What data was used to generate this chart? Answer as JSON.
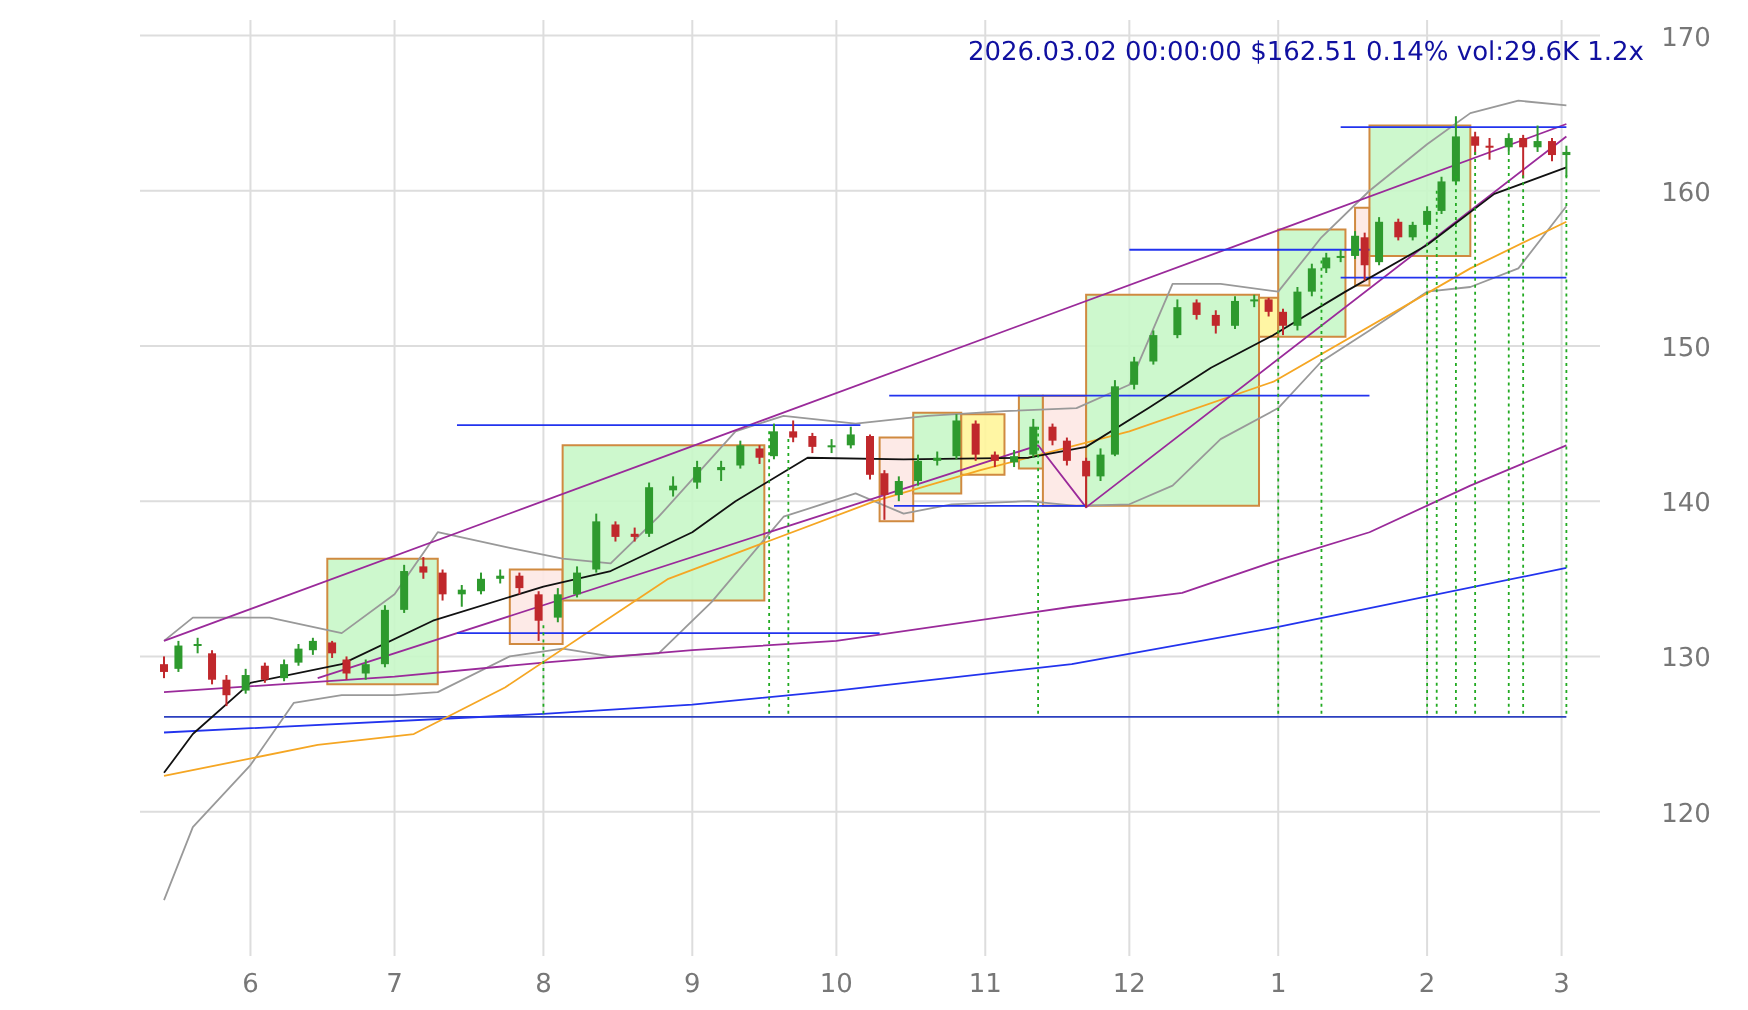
{
  "chart_data": {
    "type": "candlestick",
    "title": "2026.03.02 00:00:00 $162.51 0.14% vol:29.6K 1.2x",
    "xlim": [
      "2025-05-09",
      "2026-03-09"
    ],
    "xticks": [
      {
        "value": "2025-06-01",
        "label": "6"
      },
      {
        "value": "2025-07-01",
        "label": "7"
      },
      {
        "value": "2025-08-01",
        "label": "8"
      },
      {
        "value": "2025-09-01",
        "label": "9"
      },
      {
        "value": "2025-10-01",
        "label": "10"
      },
      {
        "value": "2025-11-01",
        "label": "11"
      },
      {
        "value": "2025-12-01",
        "label": "12"
      },
      {
        "value": "2026-01-01",
        "label": "1"
      },
      {
        "value": "2026-02-01",
        "label": "2"
      },
      {
        "value": "2026-03-01",
        "label": "3"
      }
    ],
    "ylim": [
      110.7,
      171
    ],
    "yticks": [
      120,
      130,
      140,
      150,
      160,
      170
    ],
    "grid": true,
    "series": [
      {
        "type": "area",
        "color": "#c8f7c8",
        "x": [
          "2025-06-17",
          "2025-06-17",
          "2025-07-10",
          "2025-07-10"
        ],
        "values": [
          128.2,
          136.3,
          136.3,
          128.2
        ]
      },
      {
        "type": "area",
        "color": "#fde8e4",
        "x": [
          "2025-07-25",
          "2025-07-25",
          "2025-08-05",
          "2025-08-05"
        ],
        "values": [
          130.8,
          135.6,
          135.6,
          130.8
        ]
      },
      {
        "type": "area",
        "color": "#c8f7c8",
        "x": [
          "2025-08-05",
          "2025-08-05",
          "2025-09-16",
          "2025-09-16"
        ],
        "values": [
          133.6,
          143.6,
          143.6,
          133.6
        ]
      },
      {
        "type": "area",
        "color": "#fde8e4",
        "x": [
          "2025-10-10",
          "2025-10-10",
          "2025-10-17",
          "2025-10-17"
        ],
        "values": [
          138.7,
          144.1,
          144.1,
          138.7
        ]
      },
      {
        "type": "area",
        "color": "#c8f7c8",
        "x": [
          "2025-10-17",
          "2025-10-17",
          "2025-10-27",
          "2025-10-27"
        ],
        "values": [
          140.5,
          145.7,
          145.7,
          140.5
        ]
      },
      {
        "type": "area",
        "color": "#fff59a",
        "x": [
          "2025-10-27",
          "2025-10-27",
          "2025-11-05",
          "2025-11-05"
        ],
        "values": [
          141.7,
          145.6,
          145.6,
          141.7
        ]
      },
      {
        "type": "area",
        "color": "#c8f7c8",
        "x": [
          "2025-11-08",
          "2025-11-08",
          "2025-11-13",
          "2025-11-13"
        ],
        "values": [
          142.1,
          146.8,
          146.8,
          142.1
        ]
      },
      {
        "type": "area",
        "color": "#fde8e4",
        "x": [
          "2025-11-13",
          "2025-11-13",
          "2025-11-22",
          "2025-11-22"
        ],
        "values": [
          139.7,
          146.8,
          146.8,
          139.7
        ]
      },
      {
        "type": "area",
        "color": "#c8f7c8",
        "x": [
          "2025-11-22",
          "2025-11-22",
          "2025-12-28",
          "2025-12-28"
        ],
        "values": [
          139.7,
          153.3,
          153.3,
          139.7
        ]
      },
      {
        "type": "area",
        "color": "#fff59a",
        "x": [
          "2025-12-28",
          "2025-12-28",
          "2026-01-01",
          "2026-01-01"
        ],
        "values": [
          150.6,
          153.1,
          153.1,
          150.6
        ]
      },
      {
        "type": "area",
        "color": "#c8f7c8",
        "x": [
          "2026-01-01",
          "2026-01-01",
          "2026-01-15",
          "2026-01-15"
        ],
        "values": [
          150.6,
          157.5,
          157.5,
          150.6
        ]
      },
      {
        "type": "area",
        "color": "#fde8e4",
        "x": [
          "2026-01-17",
          "2026-01-17",
          "2026-01-20",
          "2026-01-20"
        ],
        "values": [
          153.9,
          158.9,
          158.9,
          153.9
        ]
      },
      {
        "type": "area",
        "color": "#c8f7c8",
        "x": [
          "2026-01-20",
          "2026-02-10",
          "2026-02-10",
          "2026-01-20"
        ],
        "values": [
          155.8,
          155.8,
          164.2,
          164.2
        ]
      },
      {
        "type": "line",
        "color": "#2b3fbf",
        "x": [
          "2025-05-14",
          "2026-03-02"
        ],
        "values": [
          126.1,
          126.1
        ]
      },
      {
        "type": "line",
        "color": "#22aa22",
        "line_style": "dotted",
        "x": [
          "2025-08-01",
          "2025-08-01"
        ],
        "values": [
          126.3,
          132
        ]
      },
      {
        "type": "line",
        "color": "#22aa22",
        "line_style": "dotted",
        "x": [
          "2025-09-17",
          "2025-09-17"
        ],
        "values": [
          126.3,
          144.5
        ]
      },
      {
        "type": "line",
        "color": "#22aa22",
        "line_style": "dotted",
        "x": [
          "2025-09-21",
          "2025-09-21"
        ],
        "values": [
          126.3,
          144
        ]
      },
      {
        "type": "line",
        "color": "#22aa22",
        "line_style": "dotted",
        "x": [
          "2025-11-12",
          "2025-11-12"
        ],
        "values": [
          126.3,
          144.8
        ]
      },
      {
        "type": "line",
        "color": "#22aa22",
        "line_style": "dotted",
        "x": [
          "2026-01-01",
          "2026-01-01"
        ],
        "values": [
          126.3,
          151
        ]
      },
      {
        "type": "line",
        "color": "#22aa22",
        "line_style": "dotted",
        "x": [
          "2026-01-10",
          "2026-01-10"
        ],
        "values": [
          126.3,
          155.5
        ]
      },
      {
        "type": "line",
        "color": "#22aa22",
        "line_style": "dotted",
        "x": [
          "2026-02-01",
          "2026-02-01"
        ],
        "values": [
          126.3,
          158
        ]
      },
      {
        "type": "line",
        "color": "#22aa22",
        "line_style": "dotted",
        "x": [
          "2026-02-03",
          "2026-02-03"
        ],
        "values": [
          126.3,
          160
        ]
      },
      {
        "type": "line",
        "color": "#22aa22",
        "line_style": "dotted",
        "x": [
          "2026-02-07",
          "2026-02-07"
        ],
        "values": [
          126.3,
          161
        ]
      },
      {
        "type": "line",
        "color": "#22aa22",
        "line_style": "dotted",
        "x": [
          "2026-02-11",
          "2026-02-11"
        ],
        "values": [
          126.3,
          162.5
        ]
      },
      {
        "type": "line",
        "color": "#22aa22",
        "line_style": "dotted",
        "x": [
          "2026-02-18",
          "2026-02-18"
        ],
        "values": [
          126.3,
          162.5
        ]
      },
      {
        "type": "line",
        "color": "#22aa22",
        "line_style": "dotted",
        "x": [
          "2026-02-21",
          "2026-02-21"
        ],
        "values": [
          126.3,
          161
        ]
      },
      {
        "type": "line",
        "color": "#22aa22",
        "line_style": "dotted",
        "x": [
          "2026-03-02",
          "2026-03-02"
        ],
        "values": [
          126.3,
          161
        ]
      },
      {
        "type": "line",
        "color": "#999999",
        "x": [
          "2025-05-14",
          "2025-05-20",
          "2025-06-05",
          "2025-06-20",
          "2025-07-01",
          "2025-07-10",
          "2025-07-25",
          "2025-08-05",
          "2025-08-15",
          "2025-08-25",
          "2025-09-10",
          "2025-09-20",
          "2025-10-05",
          "2025-10-20",
          "2025-11-05",
          "2025-11-20",
          "2025-12-01",
          "2025-12-10",
          "2025-12-20",
          "2026-01-01",
          "2026-01-10",
          "2026-01-20",
          "2026-02-01",
          "2026-02-10",
          "2026-02-20",
          "2026-03-02"
        ],
        "values": [
          131,
          132.5,
          132.5,
          131.5,
          134,
          138,
          137,
          136.3,
          136,
          139,
          144.5,
          145.5,
          145,
          145.5,
          145.8,
          146,
          147.5,
          154,
          154,
          153.5,
          157,
          160,
          163,
          165,
          165.8,
          165.5
        ]
      },
      {
        "type": "line",
        "color": "#999999",
        "x": [
          "2025-05-14",
          "2025-05-20",
          "2025-06-01",
          "2025-06-10",
          "2025-06-20",
          "2025-07-01",
          "2025-07-10",
          "2025-07-25",
          "2025-08-05",
          "2025-08-15",
          "2025-08-25",
          "2025-09-05",
          "2025-09-20",
          "2025-10-05",
          "2025-10-15",
          "2025-10-25",
          "2025-11-10",
          "2025-11-20",
          "2025-12-01",
          "2025-12-10",
          "2025-12-20",
          "2026-01-01",
          "2026-01-10",
          "2026-01-20",
          "2026-02-01",
          "2026-02-10",
          "2026-02-20",
          "2026-03-02"
        ],
        "values": [
          114.3,
          119,
          123,
          127,
          127.5,
          127.5,
          127.7,
          130,
          130.5,
          130,
          130.2,
          133.5,
          139,
          140.5,
          139.2,
          139.8,
          140,
          139.7,
          139.8,
          141,
          144,
          146,
          149,
          151,
          153.5,
          153.8,
          155,
          159
        ]
      },
      {
        "type": "line",
        "color": "#9a2a9a",
        "x": [
          "2025-05-14",
          "2025-07-01",
          "2025-08-01",
          "2025-09-01",
          "2025-10-01",
          "2025-11-19",
          "2025-12-12",
          "2026-01-01",
          "2026-01-20",
          "2026-02-10",
          "2026-03-02"
        ],
        "values": [
          127.7,
          128.7,
          129.6,
          130.4,
          131,
          133.2,
          134.1,
          136.2,
          138,
          141,
          143.6
        ]
      },
      {
        "type": "line",
        "color": "#2233ee",
        "x": [
          "2025-05-14",
          "2025-08-01",
          "2025-09-01",
          "2025-10-01",
          "2025-11-19",
          "2026-01-01",
          "2026-03-02"
        ],
        "values": [
          125.1,
          126.3,
          126.9,
          127.8,
          129.5,
          131.9,
          135.7
        ]
      },
      {
        "type": "line",
        "color": "#f5a623",
        "x": [
          "2025-05-14",
          "2025-06-15",
          "2025-07-05",
          "2025-07-24",
          "2025-08-27",
          "2025-10-09",
          "2025-10-31",
          "2025-12-01",
          "2025-12-31",
          "2026-02-10",
          "2026-03-02"
        ],
        "values": [
          122.3,
          124.3,
          125,
          128,
          135,
          140,
          142,
          144.5,
          147.7,
          155,
          158
        ]
      },
      {
        "type": "line",
        "color": "#9a2a9a",
        "x": [
          "2025-05-14",
          "2026-03-02"
        ],
        "values": [
          131,
          164.3
        ]
      },
      {
        "type": "line",
        "color": "#9a2a9a",
        "x": [
          "2025-06-15",
          "2025-11-12",
          "2025-11-22",
          "2026-03-02"
        ],
        "values": [
          128.6,
          143.6,
          139.6,
          163.5
        ]
      },
      {
        "type": "line",
        "color": "#2233ee",
        "x": [
          "2025-07-14",
          "2025-10-06"
        ],
        "values": [
          144.9,
          144.9
        ]
      },
      {
        "type": "line",
        "color": "#2233ee",
        "x": [
          "2025-07-14",
          "2025-10-10"
        ],
        "values": [
          131.5,
          131.5
        ]
      },
      {
        "type": "line",
        "color": "#2233ee",
        "x": [
          "2025-10-12",
          "2026-01-20"
        ],
        "values": [
          146.8,
          146.8
        ]
      },
      {
        "type": "line",
        "color": "#2233ee",
        "x": [
          "2025-10-13",
          "2025-11-22"
        ],
        "values": [
          139.7,
          139.7
        ]
      },
      {
        "type": "line",
        "color": "#2233ee",
        "x": [
          "2025-12-01",
          "2026-01-20"
        ],
        "values": [
          156.2,
          156.2
        ]
      },
      {
        "type": "line",
        "color": "#2233ee",
        "x": [
          "2026-01-14",
          "2026-03-02"
        ],
        "values": [
          154.4,
          154.4
        ]
      },
      {
        "type": "line",
        "color": "#2233ee",
        "x": [
          "2026-01-14",
          "2026-03-02"
        ],
        "values": [
          164.1,
          164.1
        ]
      },
      {
        "type": "line",
        "color": "#111111",
        "x": [
          "2025-05-14",
          "2025-05-20",
          "2025-06-01",
          "2025-06-20",
          "2025-07-09",
          "2025-08-01",
          "2025-08-15",
          "2025-09-01",
          "2025-09-10",
          "2025-09-25",
          "2025-10-15",
          "2025-11-10",
          "2025-11-22",
          "2025-12-05",
          "2025-12-18",
          "2025-12-31",
          "2026-01-15",
          "2026-02-01",
          "2026-02-15",
          "2026-03-02"
        ],
        "values": [
          122.5,
          125,
          128.3,
          129.5,
          132.3,
          134.5,
          135.5,
          138,
          140,
          142.8,
          142.7,
          142.8,
          143.5,
          146,
          148.6,
          150.7,
          153.5,
          156.5,
          159.8,
          161.5
        ]
      },
      {
        "color": "#2e9a2e",
        "x": [
          "2025-05-17",
          "2025-05-21",
          "2025-05-31",
          "2025-06-08",
          "2025-06-11",
          "2025-06-14",
          "2025-06-25",
          "2025-06-29",
          "2025-07-03",
          "2025-07-15",
          "2025-07-19",
          "2025-07-23",
          "2025-08-04",
          "2025-08-08",
          "2025-08-12",
          "2025-08-23",
          "2025-08-28",
          "2025-09-02",
          "2025-09-07",
          "2025-09-11",
          "2025-09-18",
          "2025-09-30",
          "2025-10-04",
          "2025-10-14",
          "2025-10-18",
          "2025-10-22",
          "2025-10-26",
          "2025-11-07",
          "2025-11-11",
          "2025-11-25",
          "2025-11-28",
          "2025-12-02",
          "2025-12-06",
          "2025-12-11",
          "2025-12-23",
          "2025-12-27",
          "2026-01-05",
          "2026-01-08",
          "2026-01-11",
          "2026-01-14",
          "2026-01-17",
          "2026-01-22",
          "2026-01-29",
          "2026-02-01",
          "2026-02-04",
          "2026-02-07",
          "2026-02-18",
          "2026-02-24",
          "2026-03-02"
        ],
        "ohlc": [
          [
            129.2,
            131,
            129,
            130.7
          ],
          [
            130.7,
            131.2,
            130.2,
            130.8
          ],
          [
            127.8,
            129.2,
            127.6,
            128.8
          ],
          [
            128.6,
            129.8,
            128.4,
            129.5
          ],
          [
            129.6,
            130.8,
            129.4,
            130.5
          ],
          [
            130.4,
            131.2,
            130.1,
            131
          ],
          [
            128.9,
            129.8,
            128.5,
            129.5
          ],
          [
            129.5,
            133.3,
            129.3,
            133
          ],
          [
            133,
            135.9,
            132.8,
            135.5
          ],
          [
            134,
            134.6,
            133.2,
            134.3
          ],
          [
            134.2,
            135.4,
            134,
            135
          ],
          [
            135,
            135.6,
            134.7,
            135.2
          ],
          [
            132.5,
            134.4,
            132.2,
            134
          ],
          [
            134,
            135.8,
            133.8,
            135.4
          ],
          [
            135.6,
            139.2,
            135.4,
            138.7
          ],
          [
            137.9,
            141.2,
            137.7,
            140.9
          ],
          [
            140.7,
            141.6,
            140.3,
            141
          ],
          [
            141.2,
            142.6,
            140.8,
            142.2
          ],
          [
            142,
            142.6,
            141.3,
            142.2
          ],
          [
            142.3,
            143.9,
            142.1,
            143.6
          ],
          [
            142.9,
            145,
            142.7,
            144.5
          ],
          [
            143.5,
            144,
            143.1,
            143.6
          ],
          [
            143.6,
            144.8,
            143.4,
            144.3
          ],
          [
            140.4,
            141.6,
            140,
            141.3
          ],
          [
            141.3,
            143,
            141,
            142.6
          ],
          [
            142.6,
            143.2,
            142.3,
            142.8
          ],
          [
            142.9,
            145.6,
            142.7,
            145.2
          ],
          [
            142.5,
            143.3,
            142.2,
            142.9
          ],
          [
            143,
            145.3,
            142.8,
            144.8
          ],
          [
            141.6,
            143.4,
            141.3,
            143
          ],
          [
            143,
            147.8,
            142.9,
            147.4
          ],
          [
            147.5,
            149.3,
            147.2,
            149
          ],
          [
            149,
            151,
            148.8,
            150.7
          ],
          [
            150.7,
            153,
            150.5,
            152.5
          ],
          [
            151.3,
            153.2,
            151.1,
            152.9
          ],
          [
            152.9,
            153.3,
            152.5,
            153
          ],
          [
            151.3,
            153.8,
            151,
            153.5
          ],
          [
            153.5,
            155.3,
            153.2,
            155
          ],
          [
            155,
            156,
            154.7,
            155.7
          ],
          [
            155.7,
            156.2,
            155.4,
            155.8
          ],
          [
            155.8,
            157.4,
            155.6,
            157.1
          ],
          [
            155.4,
            158.3,
            155.2,
            158
          ],
          [
            157,
            158,
            156.8,
            157.8
          ],
          [
            157.8,
            159,
            157.5,
            158.7
          ],
          [
            158.7,
            160.9,
            158.5,
            160.6
          ],
          [
            160.6,
            164.8,
            160.4,
            163.5
          ],
          [
            162.8,
            163.7,
            162.5,
            163.4
          ],
          [
            162.8,
            164.2,
            162.5,
            163.2
          ],
          [
            162.3,
            162.9,
            160.9,
            162.5
          ]
        ]
      },
      {
        "color": "#c0282c",
        "x": [
          "2025-05-14",
          "2025-05-24",
          "2025-05-27",
          "2025-06-04",
          "2025-06-18",
          "2025-06-21",
          "2025-07-07",
          "2025-07-11",
          "2025-07-27",
          "2025-07-31",
          "2025-08-16",
          "2025-08-20",
          "2025-09-15",
          "2025-09-22",
          "2025-09-26",
          "2025-10-08",
          "2025-10-11",
          "2025-10-30",
          "2025-11-03",
          "2025-11-15",
          "2025-11-18",
          "2025-11-22",
          "2025-12-15",
          "2025-12-19",
          "2025-12-30",
          "2026-01-02",
          "2026-01-19",
          "2026-01-26",
          "2026-02-11",
          "2026-02-14",
          "2026-02-21",
          "2026-02-27"
        ],
        "ohlc": [
          [
            129.5,
            130,
            128.6,
            129
          ],
          [
            130.2,
            130.4,
            128.2,
            128.5
          ],
          [
            128.5,
            128.8,
            126.8,
            127.5
          ],
          [
            129.4,
            129.6,
            128.3,
            128.5
          ],
          [
            130.9,
            131,
            129.9,
            130.2
          ],
          [
            129.8,
            130,
            128.5,
            128.9
          ],
          [
            135.8,
            136.4,
            135,
            135.4
          ],
          [
            135.4,
            135.6,
            133.6,
            134
          ],
          [
            135.2,
            135.4,
            134,
            134.4
          ],
          [
            134,
            134.2,
            131,
            132.3
          ],
          [
            138.5,
            138.7,
            137.4,
            137.7
          ],
          [
            137.9,
            138.3,
            137.4,
            137.7
          ],
          [
            143.4,
            143.6,
            142.4,
            142.8
          ],
          [
            144.5,
            145.2,
            143.8,
            144.1
          ],
          [
            144.2,
            144.4,
            143.1,
            143.5
          ],
          [
            144.2,
            144.3,
            141.4,
            141.7
          ],
          [
            141.8,
            142,
            138.8,
            140.4
          ],
          [
            145,
            145.2,
            142.6,
            143
          ],
          [
            143,
            143.2,
            142.2,
            142.6
          ],
          [
            144.8,
            145,
            143.6,
            143.9
          ],
          [
            143.9,
            144.1,
            142.3,
            142.6
          ],
          [
            142.6,
            142.8,
            139.6,
            141.6
          ],
          [
            152.8,
            153,
            151.7,
            152
          ],
          [
            152,
            152.3,
            150.8,
            151.3
          ],
          [
            153,
            153.1,
            151.9,
            152.2
          ],
          [
            152.2,
            152.4,
            150.7,
            151.3
          ],
          [
            157,
            157.3,
            154.2,
            155.2
          ],
          [
            158,
            158.2,
            156.8,
            157
          ],
          [
            163.5,
            163.8,
            162.3,
            162.9
          ],
          [
            162.9,
            163.4,
            162,
            162.8
          ],
          [
            163.4,
            163.6,
            160.8,
            162.8
          ],
          [
            163.2,
            163.4,
            161.9,
            162.3
          ]
        ]
      }
    ]
  }
}
